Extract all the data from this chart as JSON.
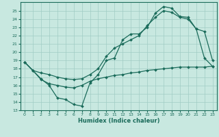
{
  "xlabel": "Humidex (Indice chaleur)",
  "bg_color": "#c8e8e0",
  "line_color": "#1a6b5a",
  "grid_color": "#a0ccc4",
  "xlim": [
    -0.5,
    23.5
  ],
  "ylim": [
    13,
    26
  ],
  "yticks": [
    13,
    14,
    15,
    16,
    17,
    18,
    19,
    20,
    21,
    22,
    23,
    24,
    25
  ],
  "xticks": [
    0,
    1,
    2,
    3,
    4,
    5,
    6,
    7,
    8,
    9,
    10,
    11,
    12,
    13,
    14,
    15,
    16,
    17,
    18,
    19,
    20,
    21,
    22,
    23
  ],
  "series1_x": [
    0,
    1,
    2,
    3,
    4,
    5,
    6,
    7,
    8,
    9,
    10,
    11,
    12,
    13,
    14,
    15,
    16,
    17,
    18,
    19,
    20,
    21,
    22,
    23
  ],
  "series1_y": [
    18.8,
    17.8,
    16.8,
    16.0,
    14.5,
    14.3,
    13.7,
    13.5,
    16.3,
    17.3,
    19.0,
    19.3,
    21.5,
    22.2,
    22.2,
    23.0,
    24.7,
    25.5,
    25.3,
    24.3,
    24.2,
    22.8,
    19.3,
    18.3
  ],
  "series2_x": [
    0,
    1,
    2,
    3,
    4,
    5,
    6,
    7,
    8,
    9,
    10,
    11,
    12,
    13,
    14,
    15,
    16,
    17,
    18,
    19,
    20,
    21,
    22,
    23
  ],
  "series2_y": [
    18.8,
    17.8,
    16.7,
    16.2,
    16.0,
    15.8,
    15.7,
    16.0,
    16.5,
    16.8,
    17.0,
    17.2,
    17.3,
    17.5,
    17.6,
    17.8,
    17.9,
    18.0,
    18.1,
    18.2,
    18.2,
    18.2,
    18.2,
    18.3
  ],
  "series3_x": [
    0,
    1,
    2,
    3,
    4,
    5,
    6,
    7,
    8,
    9,
    10,
    11,
    12,
    13,
    14,
    15,
    16,
    17,
    18,
    19,
    20,
    21,
    22,
    23
  ],
  "series3_y": [
    18.8,
    17.8,
    17.5,
    17.3,
    17.0,
    16.8,
    16.7,
    16.8,
    17.3,
    18.0,
    19.5,
    20.5,
    21.0,
    21.5,
    22.0,
    23.2,
    24.2,
    25.0,
    24.8,
    24.2,
    24.0,
    22.8,
    22.5,
    19.0
  ]
}
